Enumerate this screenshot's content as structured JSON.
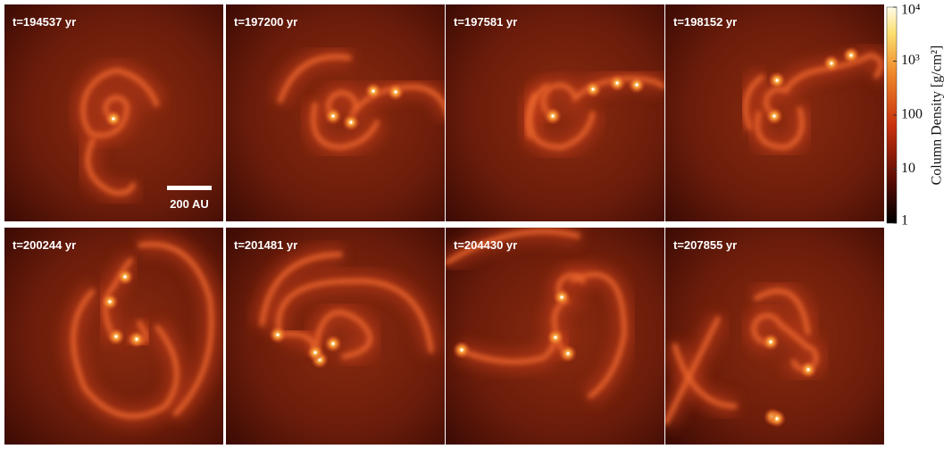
{
  "panels": [
    {
      "label": "t=194537 yr"
    },
    {
      "label": "t=197200 yr"
    },
    {
      "label": "t=197581 yr"
    },
    {
      "label": "t=198152 yr"
    },
    {
      "label": "t=200244 yr"
    },
    {
      "label": "t=201481 yr"
    },
    {
      "label": "t=204430 yr"
    },
    {
      "label": "t=207855 yr"
    }
  ],
  "scale_bar": {
    "label": "200 AU"
  },
  "colorbar": {
    "title": "Column Density [g/cm²]",
    "scale": "log",
    "lim": [
      1,
      10000
    ],
    "ticks": [
      1,
      10,
      100,
      {
        "value": 1000,
        "label": "10³"
      },
      {
        "value": 10000,
        "label": "10⁴"
      }
    ]
  }
}
